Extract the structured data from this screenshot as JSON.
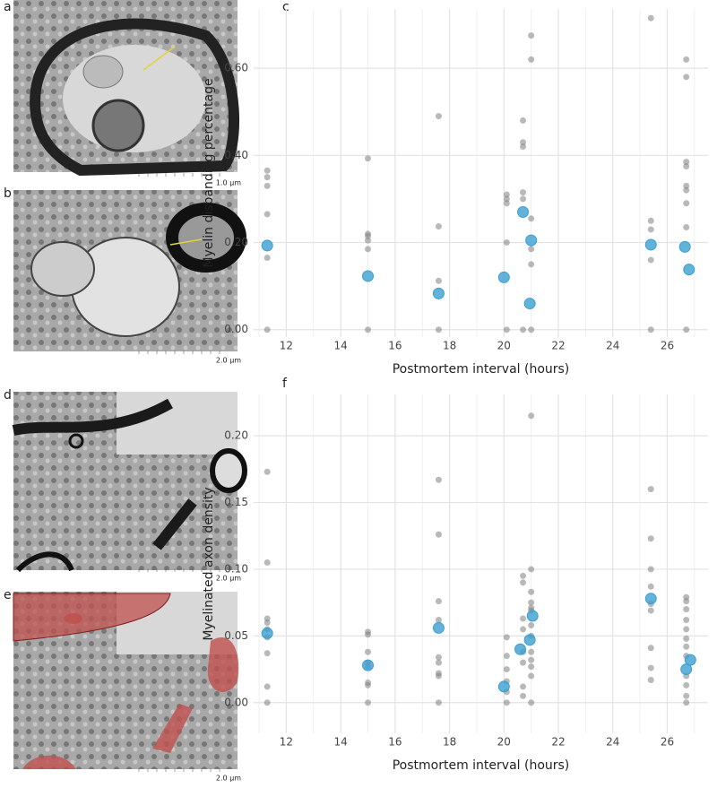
{
  "panels": [
    {
      "label": "a",
      "scale": "1.0 µm"
    },
    {
      "label": "b",
      "scale": "2.0 µm"
    },
    {
      "label": "d",
      "scale": "2.0 µm"
    },
    {
      "label": "e",
      "scale": "2.0 µm"
    }
  ],
  "chart_data": [
    {
      "type": "scatter",
      "label": "c",
      "x_label": "Postmortem interval (hours)",
      "y_label": "Myelin disbanding percentage",
      "xlim": [
        10.8,
        27.5
      ],
      "xticks": [
        12,
        14,
        16,
        18,
        20,
        22,
        24,
        26
      ],
      "x_minor_ticks": [
        11,
        13,
        15,
        17,
        19,
        21,
        23,
        25,
        27
      ],
      "ylim": [
        -0.017,
        0.736
      ],
      "yticks": [
        {
          "value": 0,
          "label": "0.00"
        },
        {
          "value": 0.2,
          "label": "0.20"
        },
        {
          "value": 0.4,
          "label": "0.40"
        },
        {
          "value": 0.6,
          "label": "0.60"
        }
      ],
      "grid": true,
      "series": [
        {
          "color": "#7f7f7f",
          "x": [
            11.3,
            11.3,
            11.3,
            11.3,
            11.3,
            11.3,
            15,
            15,
            15,
            15,
            15,
            15,
            17.6,
            17.6,
            17.6,
            17.6,
            20.1,
            20.1,
            20.1,
            20.1,
            20.1,
            20.7,
            20.7,
            20.7,
            20.7,
            20.7,
            20.7,
            21.0,
            21.0,
            21.0,
            21.0,
            21.0,
            21.0,
            25.4,
            25.4,
            25.4,
            25.4,
            25.4,
            26.7,
            26.7,
            26.7,
            26.7,
            26.7,
            26.7,
            26.7,
            26.7,
            26.7
          ],
          "values": [
            0.365,
            0.35,
            0.33,
            0.265,
            0.165,
            0.0,
            0.393,
            0.22,
            0.215,
            0.205,
            0.185,
            0.0,
            0.49,
            0.237,
            0.112,
            0.0,
            0.31,
            0.3,
            0.29,
            0.2,
            0.0,
            0.48,
            0.43,
            0.42,
            0.315,
            0.3,
            0.0,
            0.675,
            0.62,
            0.255,
            0.185,
            0.15,
            0.0,
            0.715,
            0.25,
            0.23,
            0.16,
            0.0,
            0.62,
            0.58,
            0.385,
            0.375,
            0.33,
            0.32,
            0.29,
            0.235,
            0.0
          ]
        },
        {
          "color": "#3b9fd1",
          "x": [
            11.3,
            15.0,
            17.6,
            20.0,
            20.7,
            21.0,
            20.95,
            25.4,
            26.65,
            26.8
          ],
          "values": [
            0.193,
            0.123,
            0.083,
            0.12,
            0.27,
            0.205,
            0.06,
            0.195,
            0.19,
            0.138
          ]
        }
      ]
    },
    {
      "type": "scatter",
      "label": "f",
      "x_label": "Postmortem interval (hours)",
      "y_label": "Myelinated axon density",
      "xlim": [
        10.8,
        27.5
      ],
      "xticks": [
        12,
        14,
        16,
        18,
        20,
        22,
        24,
        26
      ],
      "x_minor_ticks": [
        11,
        13,
        15,
        17,
        19,
        21,
        23,
        25,
        27
      ],
      "ylim": [
        -0.023,
        0.231
      ],
      "yticks": [
        {
          "value": 0,
          "label": "0.00"
        },
        {
          "value": 0.05,
          "label": "0.05"
        },
        {
          "value": 0.1,
          "label": "0.10"
        },
        {
          "value": 0.15,
          "label": "0.15"
        },
        {
          "value": 0.2,
          "label": "0.20"
        }
      ],
      "grid": true,
      "series": [
        {
          "color": "#7f7f7f",
          "x": [
            11.3,
            11.3,
            11.3,
            11.3,
            11.3,
            11.3,
            11.3,
            11.3,
            11.3,
            15,
            15,
            15,
            15,
            15,
            15,
            15,
            15,
            17.6,
            17.6,
            17.6,
            17.6,
            17.6,
            17.6,
            17.6,
            17.6,
            17.6,
            20.1,
            20.1,
            20.1,
            20.1,
            20.1,
            20.1,
            20.7,
            20.7,
            20.7,
            20.7,
            20.7,
            20.7,
            20.7,
            20.7,
            21.0,
            21.0,
            21.0,
            21.0,
            21.0,
            21.0,
            21.0,
            21.0,
            21.0,
            21.0,
            21.0,
            21.0,
            21.0,
            25.4,
            25.4,
            25.4,
            25.4,
            25.4,
            25.4,
            25.4,
            25.4,
            25.4,
            26.7,
            26.7,
            26.7,
            26.7,
            26.7,
            26.7,
            26.7,
            26.7,
            26.7,
            26.7,
            26.7,
            26.7
          ],
          "values": [
            0.173,
            0.105,
            0.063,
            0.06,
            0.055,
            0.049,
            0.037,
            0.012,
            0.0,
            0.053,
            0.051,
            0.038,
            0.03,
            0.027,
            0.015,
            0.013,
            0.0,
            0.167,
            0.126,
            0.076,
            0.062,
            0.034,
            0.03,
            0.022,
            0.02,
            0.0,
            0.049,
            0.035,
            0.025,
            0.016,
            0.008,
            0.0,
            0.095,
            0.09,
            0.063,
            0.055,
            0.038,
            0.03,
            0.012,
            0.005,
            0.215,
            0.1,
            0.083,
            0.075,
            0.071,
            0.069,
            0.058,
            0.05,
            0.038,
            0.032,
            0.027,
            0.02,
            0.0,
            0.16,
            0.123,
            0.1,
            0.087,
            0.074,
            0.069,
            0.041,
            0.026,
            0.017,
            0.079,
            0.076,
            0.07,
            0.062,
            0.055,
            0.048,
            0.042,
            0.035,
            0.02,
            0.013,
            0.005,
            0.0
          ]
        },
        {
          "color": "#3b9fd1",
          "x": [
            11.3,
            15.0,
            17.6,
            20.0,
            20.6,
            20.95,
            21.05,
            25.4,
            26.7,
            26.85
          ],
          "values": [
            0.052,
            0.028,
            0.056,
            0.012,
            0.04,
            0.047,
            0.065,
            0.078,
            0.025,
            0.032
          ]
        }
      ]
    }
  ]
}
